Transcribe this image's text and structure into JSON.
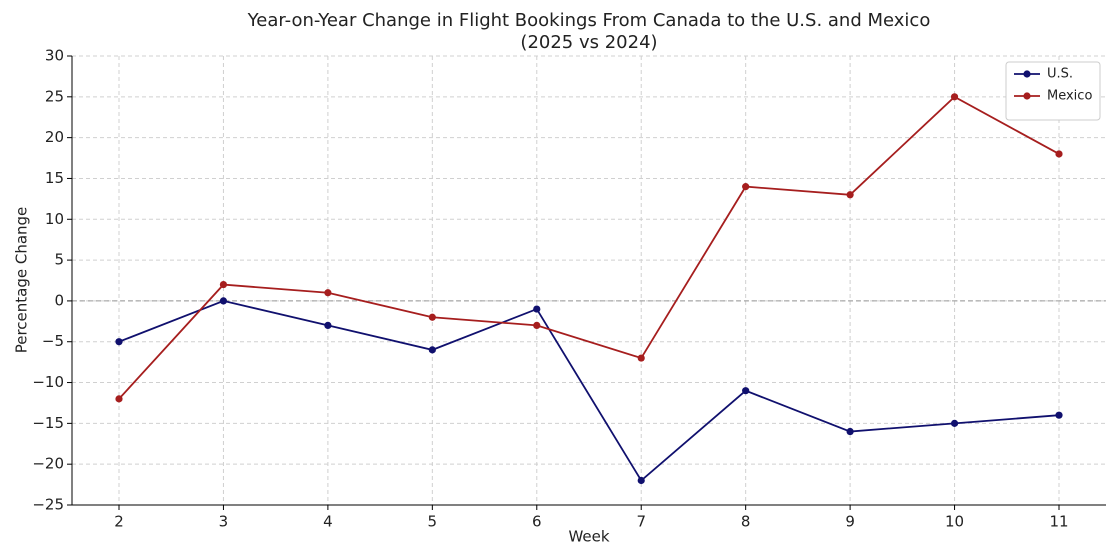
{
  "chart_data": {
    "type": "line",
    "title": [
      "Year-on-Year Change in Flight Bookings From Canada to the U.S. and Mexico",
      "(2025 vs 2024)"
    ],
    "x_label": "Week",
    "y_label": "Percentage Change",
    "x": [
      2,
      3,
      4,
      5,
      6,
      7,
      8,
      9,
      10,
      11
    ],
    "xlim": [
      1.55,
      11.45
    ],
    "xticks": [
      2,
      3,
      4,
      5,
      6,
      7,
      8,
      9,
      10,
      11
    ],
    "ylim": [
      -25,
      30
    ],
    "yticks": [
      {
        "value": -25,
        "label": "−25"
      },
      {
        "value": -20,
        "label": "−20"
      },
      {
        "value": -15,
        "label": "−15"
      },
      {
        "value": -10,
        "label": "−10"
      },
      {
        "value": -5,
        "label": "−5"
      },
      0,
      5,
      10,
      15,
      20,
      25,
      30
    ],
    "grid": true,
    "hline": 0,
    "legend": "upper right",
    "series": [
      {
        "name": "U.S.",
        "color": "#10106e",
        "values": [
          -5,
          0,
          -3,
          -6,
          -1,
          -22,
          -11,
          -16,
          -15,
          -14
        ]
      },
      {
        "name": "Mexico",
        "color": "#a61e1e",
        "values": [
          -12,
          2,
          1,
          -2,
          -3,
          -7,
          14,
          13,
          25,
          18
        ]
      }
    ]
  }
}
